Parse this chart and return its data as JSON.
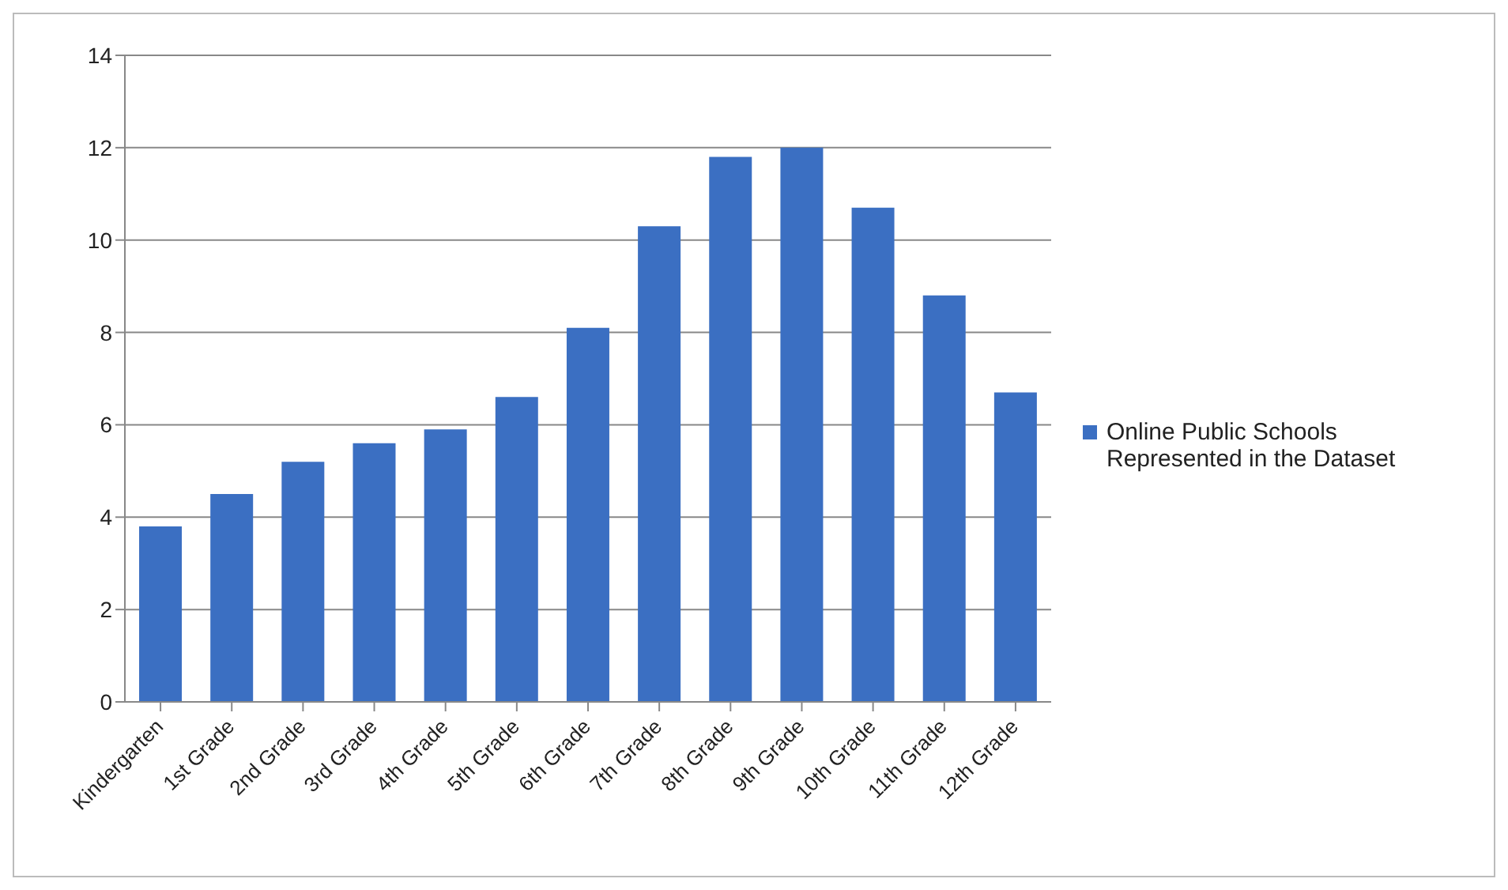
{
  "chart_data": {
    "type": "bar",
    "categories": [
      "Kindergarten",
      "1st Grade",
      "2nd Grade",
      "3rd Grade",
      "4th Grade",
      "5th Grade",
      "6th Grade",
      "7th Grade",
      "8th Grade",
      "9th Grade",
      "10th Grade",
      "11th Grade",
      "12th Grade"
    ],
    "series": [
      {
        "name": "Online Public Schools Represented in the Dataset",
        "color": "#3b6fc2",
        "values": [
          3.8,
          4.5,
          5.2,
          5.6,
          5.9,
          6.6,
          8.1,
          10.3,
          11.8,
          12.0,
          10.7,
          8.8,
          6.7
        ]
      }
    ],
    "ylim": [
      0,
      14
    ],
    "yticks": [
      0,
      2,
      4,
      6,
      8,
      10,
      12,
      14
    ],
    "grid": "y",
    "legend": "right"
  }
}
